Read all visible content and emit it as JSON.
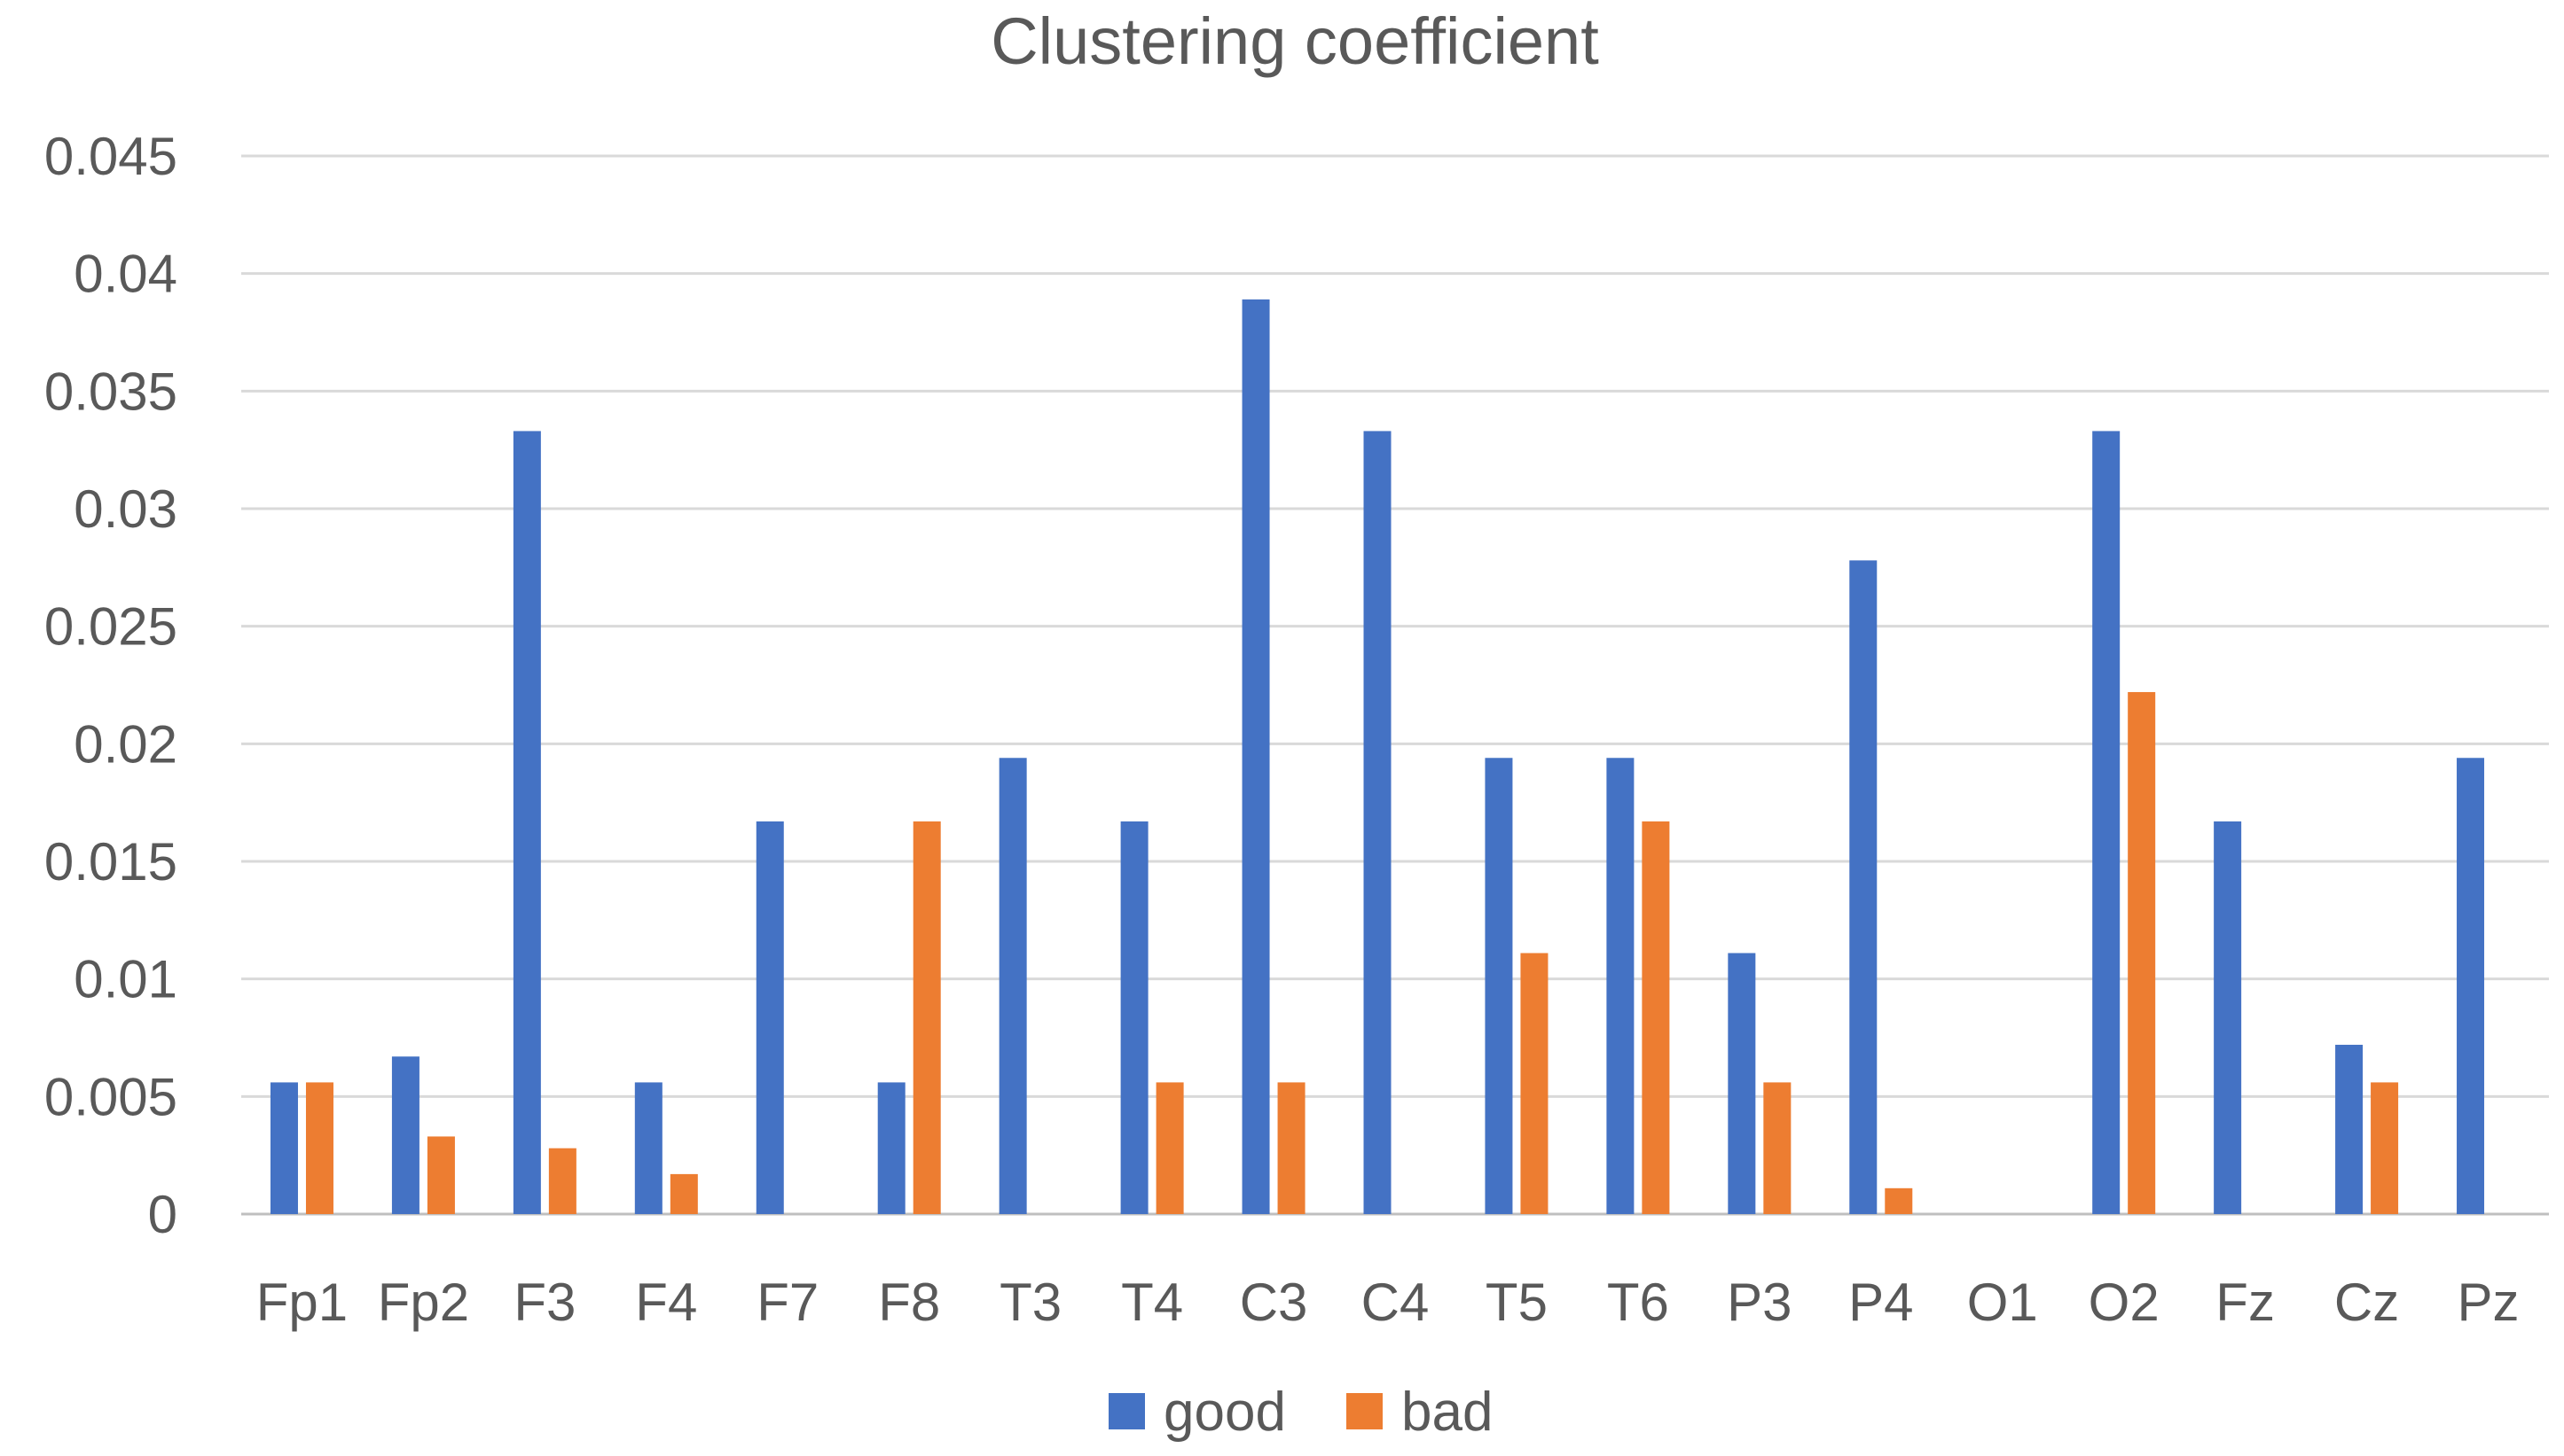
{
  "chart_data": {
    "type": "bar",
    "title": "Clustering coefficient",
    "xlabel": "",
    "ylabel": "",
    "categories": [
      "Fp1",
      "Fp2",
      "F3",
      "F4",
      "F7",
      "F8",
      "T3",
      "T4",
      "C3",
      "C4",
      "T5",
      "T6",
      "P3",
      "P4",
      "O1",
      "O2",
      "Fz",
      "Cz",
      "Pz"
    ],
    "series": [
      {
        "name": "good",
        "color": "#4472C4",
        "values": [
          0.0056,
          0.0067,
          0.0333,
          0.0056,
          0.0167,
          0.0056,
          0.0194,
          0.0167,
          0.0389,
          0.0333,
          0.0194,
          0.0194,
          0.0111,
          0.0278,
          0,
          0.0333,
          0.0167,
          0.0072,
          0.0194
        ]
      },
      {
        "name": "bad",
        "color": "#ED7D31",
        "values": [
          0.0056,
          0.0033,
          0.0028,
          0.0017,
          0,
          0.0167,
          0,
          0.0056,
          0.0056,
          0,
          0.0111,
          0.0167,
          0.0056,
          0.0011,
          0,
          0.0222,
          0,
          0.0056,
          0
        ]
      }
    ],
    "ylim": [
      0,
      0.045
    ],
    "yticks": [
      "0",
      "0.005",
      "0.01",
      "0.015",
      "0.02",
      "0.025",
      "0.03",
      "0.035",
      "0.04",
      "0.045"
    ],
    "grid": true,
    "legend": "bottom"
  }
}
